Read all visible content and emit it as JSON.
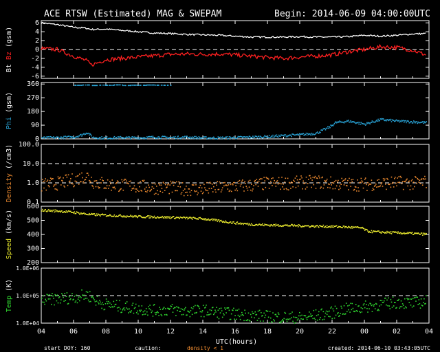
{
  "header": {
    "title": "ACE RTSW (Estimated) MAG & SWEPAM",
    "begin": "Begin: 2014-06-09 04:00:00UTC"
  },
  "footer": {
    "start_doy": "start DOY: 160",
    "caution_label": "caution:",
    "caution_text": "density < 1",
    "created": "created: 2014-06-10 03:43:05UTC"
  },
  "colors": {
    "background": "#000000",
    "frame": "#ffffff",
    "bt": "#ffffff",
    "bz": "#ff2020",
    "phi": "#29a3d6",
    "density": "#f08c30",
    "speed": "#ecec2e",
    "temp": "#2fd62f"
  },
  "chart_data": [
    {
      "type": "line",
      "panel": "mag",
      "ylabel_parts": [
        "Bt",
        "Bz",
        "(gsm)"
      ],
      "ylim": [
        -6.5,
        6.5
      ],
      "yticks": [
        -6,
        -4,
        -2,
        0,
        2,
        4,
        6
      ],
      "ytick_labels": [
        "-6",
        "-4",
        "-2",
        "0",
        "2",
        "4",
        "6"
      ],
      "dashed_y": 0,
      "x": [
        0,
        1,
        2,
        2.8,
        3.1,
        4,
        5,
        6,
        7,
        8,
        9,
        10,
        11,
        12,
        13,
        14,
        15,
        16,
        17,
        18,
        19,
        20,
        21,
        22,
        23,
        23.8
      ],
      "series": [
        {
          "name": "Bt",
          "color_key": "bt",
          "values": [
            6.0,
            5.6,
            5.0,
            4.8,
            4.5,
            4.6,
            4.3,
            4.0,
            3.7,
            3.6,
            3.4,
            3.3,
            3.2,
            3.0,
            2.8,
            2.8,
            2.8,
            2.9,
            2.8,
            2.8,
            2.9,
            3.2,
            3.0,
            3.2,
            3.5,
            3.6
          ]
        },
        {
          "name": "Bz",
          "color_key": "bz",
          "values": [
            0.2,
            0.0,
            -1.5,
            -2.5,
            -3.5,
            -2.3,
            -2.0,
            -1.7,
            -1.4,
            -1.1,
            -1.0,
            -1.1,
            -1.0,
            -1.2,
            -1.5,
            -1.8,
            -2.0,
            -1.7,
            -1.5,
            -1.2,
            -0.5,
            0.0,
            0.6,
            0.5,
            -0.2,
            -1.2
          ]
        }
      ]
    },
    {
      "type": "scatter",
      "panel": "phi",
      "ylabel": "Phi (gsm)",
      "color_key": "phi",
      "ylim": [
        0,
        370
      ],
      "yticks": [
        0,
        90,
        180,
        270,
        360
      ],
      "ytick_labels": [
        "0",
        "90",
        "180",
        "270",
        "360"
      ],
      "x": [
        0,
        1,
        2,
        2.5,
        2.8,
        3.2,
        4,
        5,
        6,
        7,
        8,
        9,
        10,
        11,
        12,
        13,
        14,
        15,
        16,
        17,
        17.8,
        18.2,
        19,
        20,
        21,
        22,
        23,
        23.8
      ],
      "values": [
        10,
        12,
        15,
        30,
        45,
        12,
        10,
        12,
        10,
        15,
        12,
        15,
        10,
        10,
        12,
        15,
        18,
        25,
        30,
        40,
        80,
        110,
        120,
        100,
        130,
        120,
        115,
        110
      ],
      "wrap_x": [
        2.0,
        2.5,
        3.0,
        3.5,
        4.0,
        4.5,
        5.0,
        5.5,
        6.0,
        6.5,
        7.0,
        7.5
      ],
      "wrap_values": [
        355,
        357,
        354,
        356,
        355,
        358,
        354,
        356,
        355,
        357,
        356,
        355
      ]
    },
    {
      "type": "scatter",
      "panel": "density",
      "ylabel": "Density (/cm3)",
      "color_key": "density",
      "scale": "log",
      "ylim": [
        0.1,
        100
      ],
      "yticks": [
        0.1,
        1,
        10,
        100
      ],
      "ytick_labels": [
        "0.1",
        "1.0",
        "10.0",
        "100.0"
      ],
      "dashed_y": [
        1,
        10
      ],
      "x": [
        0,
        1,
        2,
        2.8,
        3.2,
        4,
        5,
        6,
        7,
        8,
        9,
        10,
        11,
        12,
        13,
        14,
        15,
        16,
        17,
        18,
        19,
        20,
        21,
        22,
        23,
        23.8
      ],
      "values": [
        0.8,
        1.0,
        1.5,
        2.5,
        1.2,
        0.9,
        0.8,
        0.7,
        0.6,
        0.6,
        0.5,
        0.5,
        0.6,
        0.7,
        0.8,
        1.0,
        1.0,
        1.1,
        1.2,
        1.0,
        0.9,
        0.9,
        1.0,
        1.1,
        1.0,
        1.2
      ]
    },
    {
      "type": "scatter",
      "panel": "speed",
      "ylabel": "Speed (km/s)",
      "color_key": "speed",
      "ylim": [
        200,
        600
      ],
      "yticks": [
        200,
        300,
        400,
        500,
        600
      ],
      "ytick_labels": [
        "200",
        "300",
        "400",
        "500",
        "600"
      ],
      "x": [
        0,
        1,
        2,
        3,
        4,
        5,
        6,
        7,
        8,
        9,
        10,
        11,
        12,
        13,
        14,
        15,
        16,
        17,
        18,
        19,
        19.8,
        20.2,
        21,
        22,
        23,
        23.8
      ],
      "values": [
        575,
        570,
        560,
        545,
        540,
        535,
        530,
        528,
        525,
        520,
        515,
        500,
        485,
        475,
        470,
        468,
        465,
        462,
        460,
        455,
        450,
        425,
        420,
        415,
        410,
        405
      ]
    },
    {
      "type": "scatter",
      "panel": "temp",
      "ylabel": "Temp (K)",
      "color_key": "temp",
      "scale": "log",
      "ylim": [
        10000,
        1000000
      ],
      "yticks": [
        10000,
        100000,
        1000000
      ],
      "ytick_labels": [
        "1.0E+04",
        "1.0E+05",
        "1.0E+06"
      ],
      "dashed_y": [
        100000
      ],
      "x": [
        0,
        1,
        2,
        2.8,
        3.5,
        4,
        5,
        6,
        7,
        8,
        9,
        10,
        11,
        12,
        13,
        14,
        15,
        16,
        17,
        18,
        19,
        20,
        21,
        22,
        23,
        23.8
      ],
      "values": [
        70000,
        80000,
        90000,
        110000,
        60000,
        50000,
        40000,
        35000,
        30000,
        32000,
        28000,
        30000,
        25000,
        22000,
        20000,
        18000,
        17000,
        16000,
        20000,
        25000,
        35000,
        40000,
        50000,
        60000,
        55000,
        65000
      ]
    },
    {
      "panel": "x-axis",
      "xlabel": "UTC(hours)",
      "xlim": [
        0,
        24
      ],
      "xticks": [
        0,
        2,
        4,
        6,
        8,
        10,
        12,
        14,
        16,
        18,
        20,
        22,
        24
      ],
      "xtick_labels": [
        "04",
        "06",
        "08",
        "10",
        "12",
        "14",
        "16",
        "18",
        "20",
        "22",
        "00",
        "02",
        "04"
      ]
    }
  ]
}
